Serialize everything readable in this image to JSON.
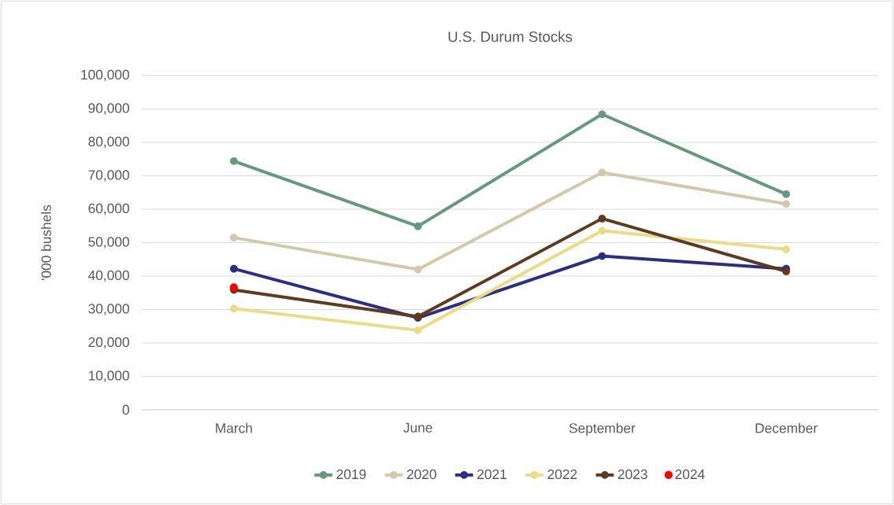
{
  "chart_data": {
    "type": "line",
    "title": "U.S. Durum Stocks",
    "ylabel": "'000 bushels",
    "categories": [
      "March",
      "June",
      "September",
      "December"
    ],
    "series": [
      {
        "name": "2019",
        "color": "#639A7A",
        "values": [
          74400,
          54900,
          88400,
          64500
        ]
      },
      {
        "name": "2020",
        "color": "#D3C8A8",
        "values": [
          51500,
          42000,
          71000,
          61600
        ]
      },
      {
        "name": "2021",
        "color": "#2A2F85",
        "values": [
          42200,
          27500,
          46000,
          42200
        ]
      },
      {
        "name": "2022",
        "color": "#EADC86",
        "values": [
          30300,
          23800,
          53600,
          48000
        ]
      },
      {
        "name": "2023",
        "color": "#5F3A1E",
        "values": [
          35900,
          27900,
          57200,
          41400
        ]
      },
      {
        "name": "2024",
        "color": "#FF0000",
        "type": "scatter",
        "values": [
          36600,
          null,
          null,
          null
        ]
      }
    ],
    "ylim": [
      0,
      100000
    ],
    "yticks": [
      {
        "value": 0,
        "label": "0"
      },
      {
        "value": 10000,
        "label": "10,000"
      },
      {
        "value": 20000,
        "label": "20,000"
      },
      {
        "value": 30000,
        "label": "30,000"
      },
      {
        "value": 40000,
        "label": "40,000"
      },
      {
        "value": 50000,
        "label": "50,000"
      },
      {
        "value": 60000,
        "label": "60,000"
      },
      {
        "value": 70000,
        "label": "70,000"
      },
      {
        "value": 80000,
        "label": "80,000"
      },
      {
        "value": 90000,
        "label": "90,000"
      },
      {
        "value": 100000,
        "label": "100,000"
      }
    ],
    "grid": "y",
    "legend": "bottom",
    "marker": "circle"
  }
}
